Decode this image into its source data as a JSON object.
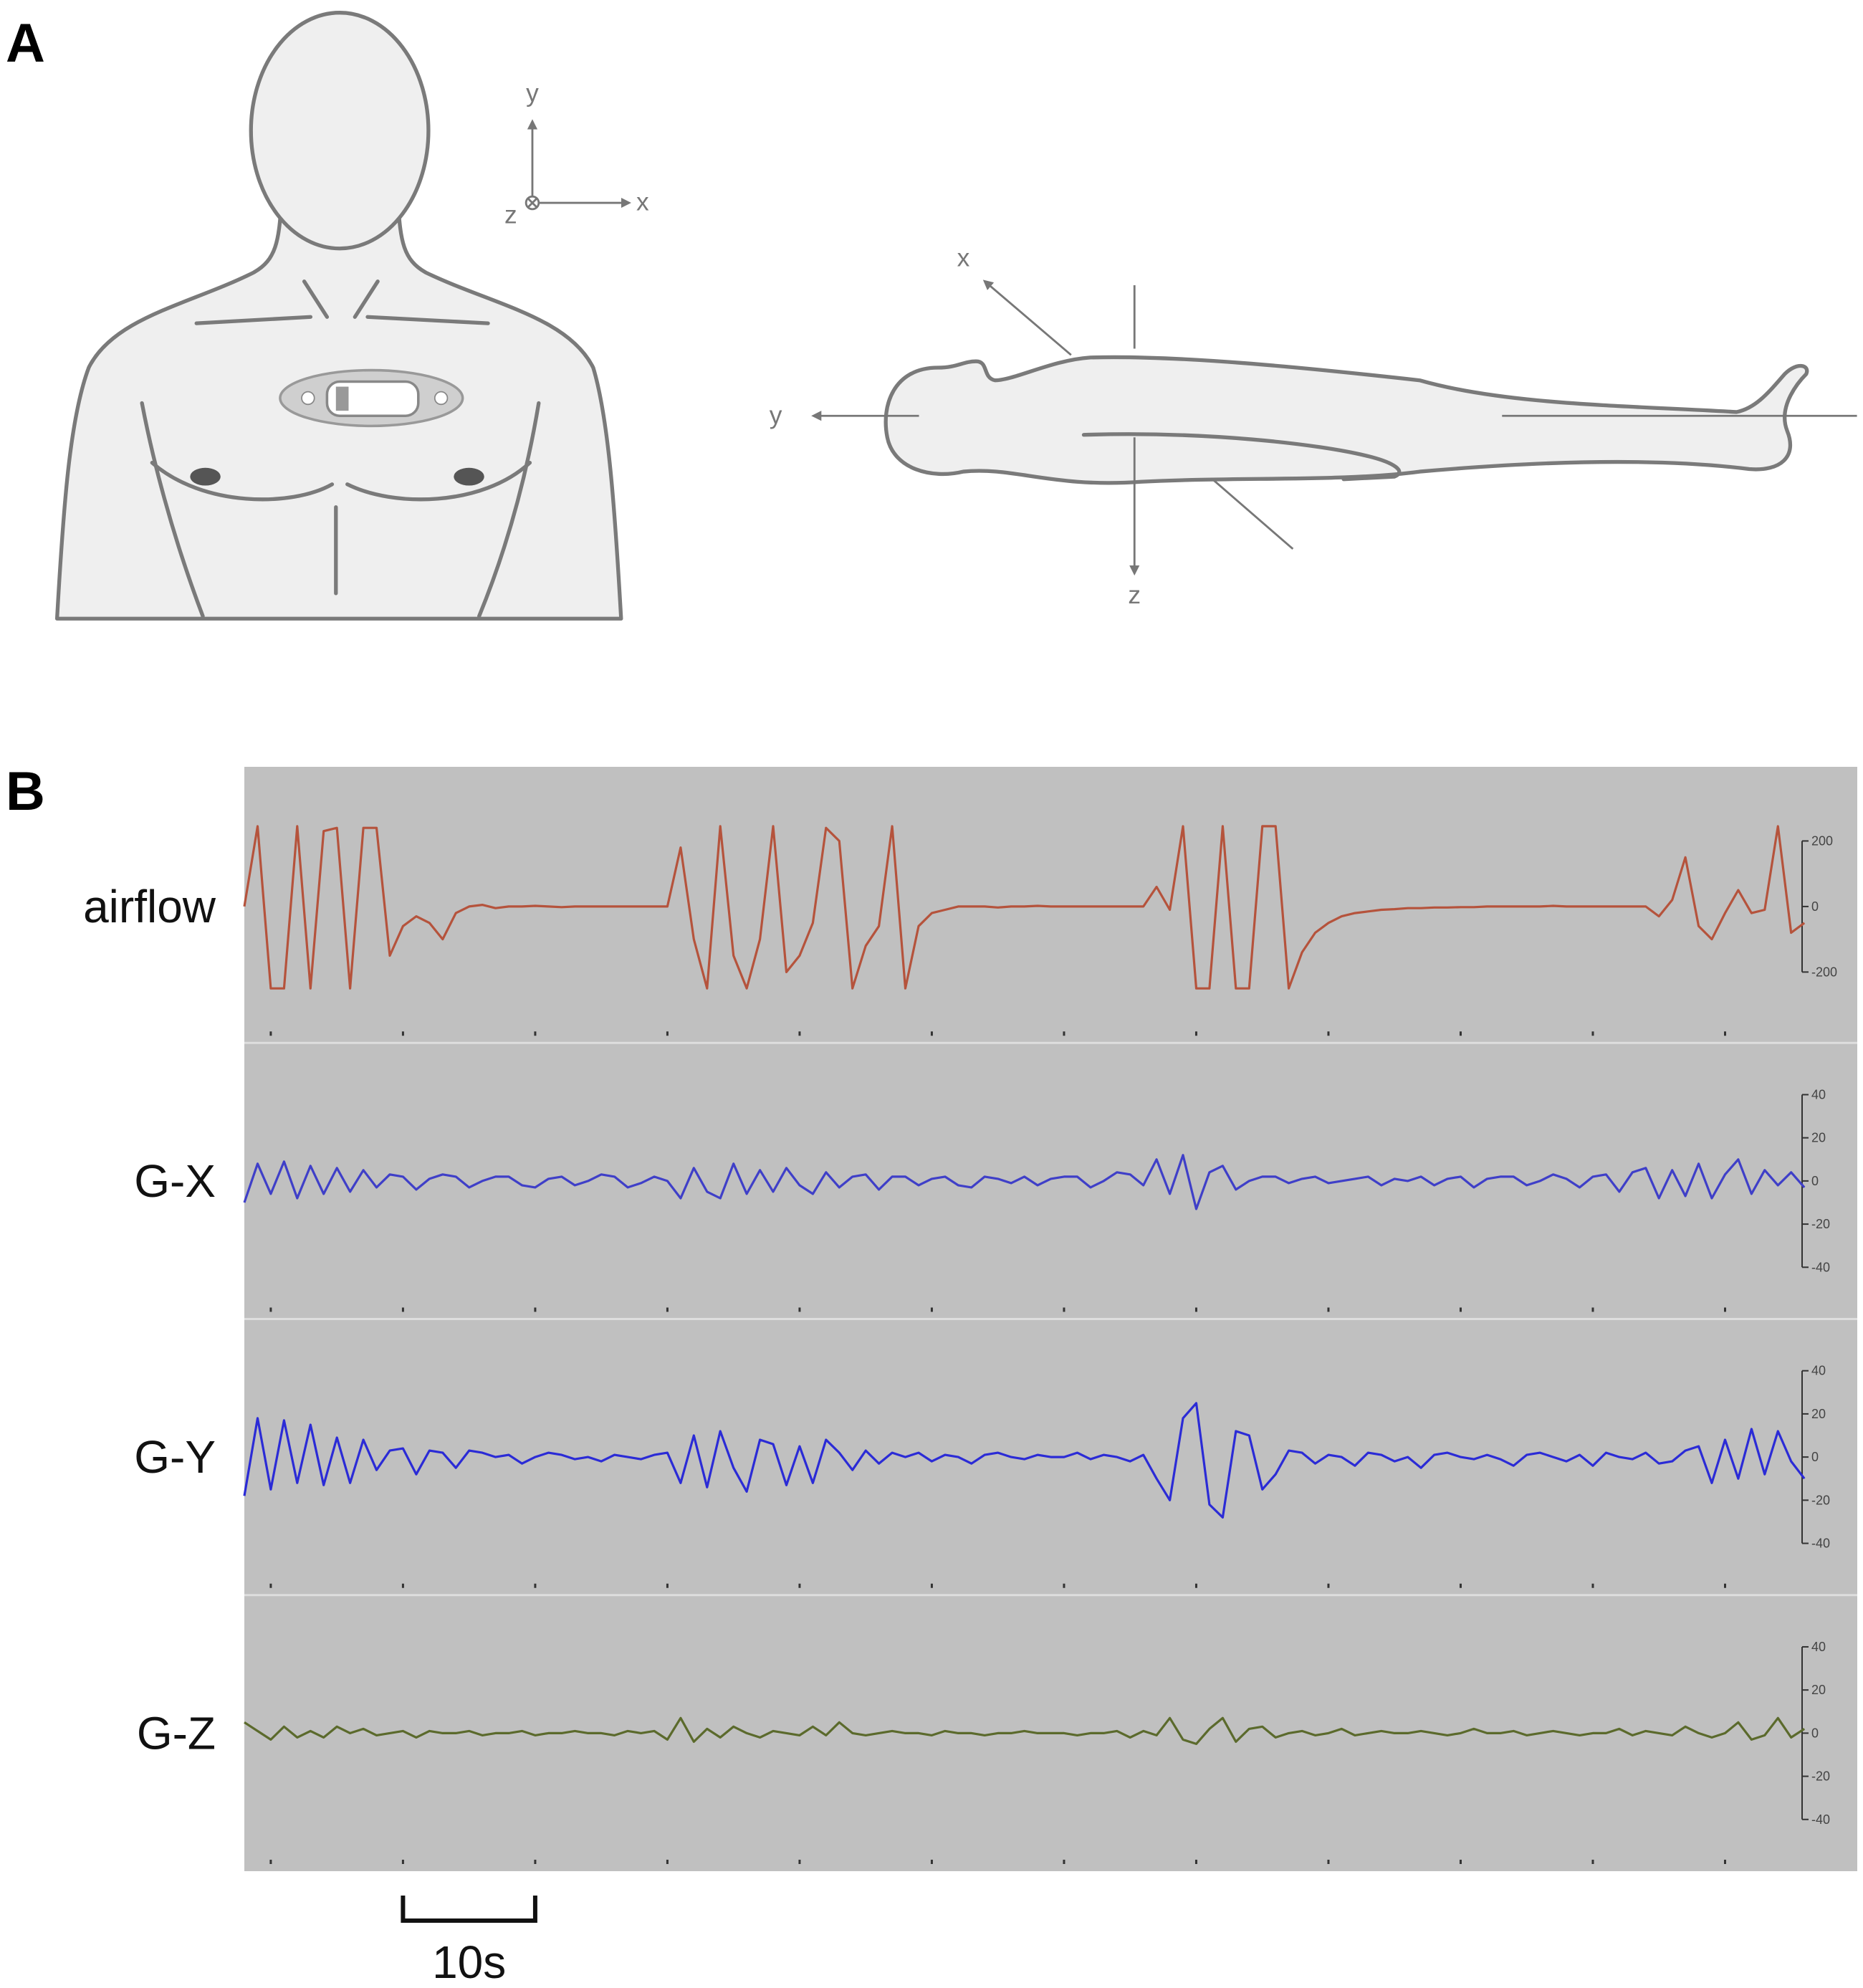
{
  "panel_a": {
    "label": "A",
    "front_axes": [
      "y",
      "x",
      "z"
    ],
    "side_axes": [
      "x",
      "y",
      "z"
    ]
  },
  "panel_b": {
    "label": "B"
  },
  "chart_data": {
    "type": "line",
    "xlim": [
      -2,
      120
    ],
    "xticks": [
      0,
      10,
      20,
      30,
      40,
      50,
      60,
      70,
      80,
      90,
      100,
      110
    ],
    "scale_bar": {
      "value": 10,
      "label": "10s"
    },
    "x": [
      -2,
      -1,
      0,
      1,
      2,
      3,
      4,
      5,
      6,
      7,
      8,
      9,
      10,
      11,
      12,
      13,
      14,
      15,
      16,
      17,
      18,
      19,
      20,
      21,
      22,
      23,
      24,
      25,
      26,
      27,
      28,
      29,
      30,
      31,
      32,
      33,
      34,
      35,
      36,
      37,
      38,
      39,
      40,
      41,
      42,
      43,
      44,
      45,
      46,
      47,
      48,
      49,
      50,
      51,
      52,
      53,
      54,
      55,
      56,
      57,
      58,
      59,
      60,
      61,
      62,
      63,
      64,
      65,
      66,
      67,
      68,
      69,
      70,
      71,
      72,
      73,
      74,
      75,
      76,
      77,
      78,
      79,
      80,
      81,
      82,
      83,
      84,
      85,
      86,
      87,
      88,
      89,
      90,
      91,
      92,
      93,
      94,
      95,
      96,
      97,
      98,
      99,
      100,
      101,
      102,
      103,
      104,
      105,
      106,
      107,
      108,
      109,
      110,
      111,
      112,
      113,
      114,
      115,
      116
    ],
    "series": [
      {
        "name": "airflow",
        "color": "#b5533c",
        "ylim": [
          -390,
          400
        ],
        "yticks": [
          -200,
          0,
          200
        ],
        "values": [
          0,
          245,
          -250,
          -250,
          245,
          -250,
          230,
          240,
          -250,
          240,
          240,
          -150,
          -60,
          -30,
          -50,
          -100,
          -20,
          0,
          5,
          -5,
          0,
          0,
          2,
          0,
          -2,
          0,
          0,
          0,
          0,
          0,
          0,
          0,
          0,
          180,
          -100,
          -250,
          245,
          -150,
          -250,
          -100,
          245,
          -200,
          -150,
          -50,
          240,
          200,
          -250,
          -120,
          -60,
          245,
          -250,
          -60,
          -20,
          -10,
          0,
          0,
          0,
          -3,
          0,
          0,
          2,
          0,
          0,
          0,
          0,
          0,
          0,
          0,
          0,
          60,
          -10,
          245,
          -250,
          -250,
          245,
          -250,
          -250,
          245,
          245,
          -250,
          -140,
          -80,
          -50,
          -30,
          -20,
          -15,
          -10,
          -8,
          -5,
          -5,
          -3,
          -3,
          -2,
          -2,
          0,
          0,
          0,
          0,
          0,
          2,
          0,
          0,
          0,
          0,
          0,
          0,
          0,
          -30,
          20,
          150,
          -60,
          -100,
          -20,
          50,
          -20,
          -10,
          245,
          -80,
          -50
        ]
      },
      {
        "name": "G-X",
        "color": "#3f3fc8",
        "ylim": [
          -60,
          60
        ],
        "yticks": [
          -40,
          -20,
          0,
          20,
          40
        ],
        "values": [
          -10,
          8,
          -6,
          9,
          -8,
          7,
          -6,
          6,
          -5,
          5,
          -3,
          3,
          2,
          -4,
          1,
          3,
          2,
          -3,
          0,
          2,
          2,
          -2,
          -3,
          1,
          2,
          -2,
          0,
          3,
          2,
          -3,
          -1,
          2,
          0,
          -8,
          6,
          -5,
          -8,
          8,
          -6,
          5,
          -5,
          6,
          -2,
          -6,
          4,
          -3,
          2,
          3,
          -4,
          2,
          2,
          -2,
          1,
          2,
          -2,
          -3,
          2,
          1,
          -1,
          2,
          -2,
          1,
          2,
          2,
          -3,
          0,
          4,
          3,
          -2,
          10,
          -6,
          12,
          -13,
          4,
          7,
          -4,
          0,
          2,
          2,
          -1,
          1,
          2,
          -1,
          0,
          1,
          2,
          -2,
          1,
          0,
          2,
          -2,
          1,
          2,
          -3,
          1,
          2,
          2,
          -2,
          0,
          3,
          1,
          -3,
          2,
          3,
          -5,
          4,
          6,
          -8,
          5,
          -7,
          8,
          -8,
          3,
          10,
          -6,
          5,
          -2,
          4,
          -3
        ]
      },
      {
        "name": "G-Y",
        "color": "#2b2bd6",
        "ylim": [
          -60,
          60
        ],
        "yticks": [
          -40,
          -20,
          0,
          20,
          40
        ],
        "values": [
          -18,
          18,
          -15,
          17,
          -12,
          15,
          -13,
          9,
          -12,
          8,
          -6,
          3,
          4,
          -8,
          3,
          2,
          -5,
          3,
          2,
          0,
          1,
          -3,
          0,
          2,
          1,
          -1,
          0,
          -2,
          1,
          0,
          -1,
          1,
          2,
          -12,
          10,
          -14,
          12,
          -5,
          -16,
          8,
          6,
          -13,
          5,
          -12,
          8,
          2,
          -6,
          3,
          -3,
          2,
          0,
          2,
          -2,
          1,
          0,
          -3,
          1,
          2,
          0,
          -1,
          1,
          0,
          0,
          2,
          -1,
          1,
          0,
          -2,
          1,
          -10,
          -20,
          18,
          25,
          -22,
          -28,
          12,
          10,
          -15,
          -8,
          3,
          2,
          -3,
          1,
          0,
          -4,
          2,
          1,
          -2,
          0,
          -5,
          1,
          2,
          0,
          -1,
          1,
          -1,
          -4,
          1,
          2,
          0,
          -2,
          1,
          -4,
          2,
          0,
          -1,
          2,
          -3,
          -2,
          3,
          5,
          -12,
          8,
          -10,
          13,
          -8,
          12,
          -2,
          -10
        ]
      },
      {
        "name": "G-Z",
        "color": "#5b6a2c",
        "ylim": [
          -60,
          60
        ],
        "yticks": [
          -40,
          -20,
          0,
          20,
          40
        ],
        "values": [
          5,
          1,
          -3,
          3,
          -2,
          1,
          -2,
          3,
          0,
          2,
          -1,
          0,
          1,
          -2,
          1,
          0,
          0,
          1,
          -1,
          0,
          0,
          1,
          -1,
          0,
          0,
          1,
          0,
          0,
          -1,
          1,
          0,
          1,
          -3,
          7,
          -4,
          2,
          -2,
          3,
          0,
          -2,
          1,
          0,
          -1,
          3,
          -1,
          5,
          0,
          -1,
          0,
          1,
          0,
          0,
          -1,
          1,
          0,
          0,
          -1,
          0,
          0,
          1,
          0,
          0,
          0,
          -1,
          0,
          0,
          1,
          -2,
          1,
          -1,
          7,
          -3,
          -5,
          2,
          7,
          -4,
          2,
          3,
          -2,
          0,
          1,
          -1,
          0,
          2,
          -1,
          0,
          1,
          0,
          0,
          1,
          0,
          -1,
          0,
          2,
          0,
          0,
          1,
          -1,
          0,
          1,
          0,
          -1,
          0,
          0,
          2,
          -1,
          1,
          0,
          -1,
          3,
          0,
          -2,
          0,
          5,
          -3,
          -1,
          7,
          -2,
          2
        ]
      }
    ]
  }
}
